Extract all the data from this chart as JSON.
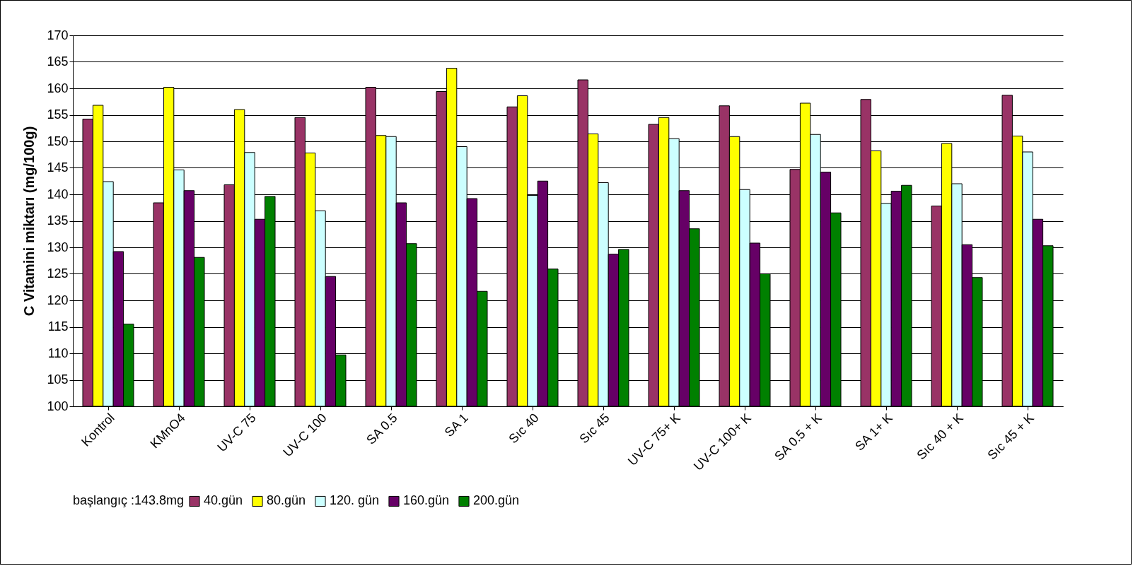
{
  "chart_data": {
    "type": "bar",
    "ylabel": "C Vitamini miktarı (mg/100g)",
    "legend_title": "başlangıç :143.8mg",
    "legend": "bottom",
    "grid": "y",
    "categories": [
      "Kontrol",
      "KMnO4",
      "UV-C 75",
      "UV-C 100",
      "SA 0.5",
      "SA 1",
      "Sıc 40",
      "Sıc 45",
      "UV-C 75+ K",
      "UV-C 100+ K",
      "SA 0.5 + K",
      "SA 1+ K",
      "Sıc 40 + K",
      "Sıc 45 + K"
    ],
    "ylim": [
      100,
      170
    ],
    "yticks": [
      100,
      105,
      110,
      115,
      120,
      125,
      130,
      135,
      140,
      145,
      150,
      155,
      160,
      165,
      170
    ],
    "series": [
      {
        "name": "40.gün",
        "color": "#993366",
        "values": [
          154.2,
          138.4,
          141.8,
          154.5,
          160.2,
          159.4,
          156.5,
          161.6,
          153.2,
          156.7,
          144.7,
          157.9,
          137.8,
          158.7
        ]
      },
      {
        "name": "80.gün",
        "color": "#ffff00",
        "values": [
          156.8,
          160.2,
          156.0,
          147.8,
          151.1,
          163.8,
          158.6,
          151.4,
          154.5,
          150.9,
          157.2,
          148.2,
          149.6,
          151.0
        ]
      },
      {
        "name": "120. gün",
        "color": "#ccffff",
        "values": [
          142.4,
          144.6,
          147.9,
          136.9,
          150.9,
          149.0,
          139.8,
          142.2,
          150.5,
          140.9,
          151.3,
          138.3,
          142.0,
          148.0
        ]
      },
      {
        "name": "160.gün",
        "color": "#660066",
        "values": [
          129.2,
          140.7,
          135.3,
          124.5,
          138.4,
          139.2,
          142.5,
          128.7,
          140.7,
          130.8,
          144.2,
          140.6,
          130.5,
          135.3
        ]
      },
      {
        "name": "200.gün",
        "color": "#008000",
        "values": [
          115.5,
          128.1,
          139.6,
          109.7,
          130.7,
          121.7,
          125.9,
          129.6,
          133.5,
          125.0,
          136.5,
          141.7,
          124.3,
          130.3
        ]
      }
    ]
  }
}
